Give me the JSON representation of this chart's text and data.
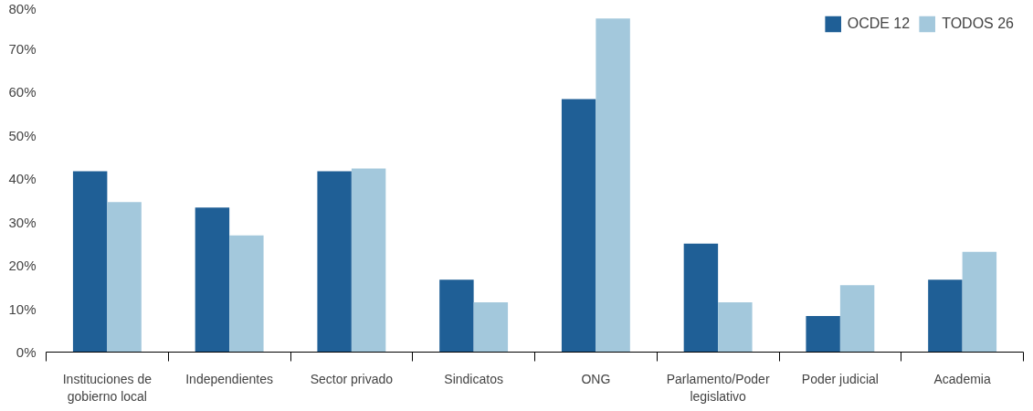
{
  "chart_data": {
    "type": "bar",
    "categories": [
      "Instituciones de gobierno local",
      "Independientes",
      "Sector privado",
      "Sindicatos",
      "ONG",
      "Parlamento/Poder legislativo",
      "Poder judicial",
      "Academia"
    ],
    "series": [
      {
        "name": "OCDE 12",
        "color": "#1f5f96",
        "values": [
          41.7,
          33.3,
          41.7,
          16.7,
          58.3,
          25.0,
          8.3,
          16.7
        ]
      },
      {
        "name": "TODOS 26",
        "color": "#a3c8dc",
        "values": [
          34.6,
          26.9,
          42.3,
          11.5,
          76.9,
          11.5,
          15.4,
          23.1
        ]
      }
    ],
    "ylim": [
      0,
      80
    ],
    "yticks": [
      {
        "value": 0,
        "label": "0%"
      },
      {
        "value": 10,
        "label": "10%"
      },
      {
        "value": 20,
        "label": "20%"
      },
      {
        "value": 30,
        "label": "30%"
      },
      {
        "value": 40,
        "label": "40%"
      },
      {
        "value": 50,
        "label": "50%"
      },
      {
        "value": 60,
        "label": "60%"
      },
      {
        "value": 70,
        "label": "70%"
      },
      {
        "value": 80,
        "label": "80%"
      }
    ],
    "grid": false,
    "legend": "top right"
  }
}
